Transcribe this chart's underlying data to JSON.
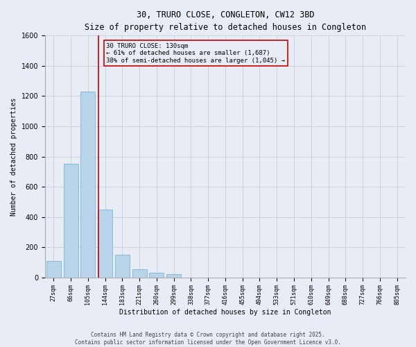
{
  "title_line1": "30, TRURO CLOSE, CONGLETON, CW12 3BD",
  "title_line2": "Size of property relative to detached houses in Congleton",
  "xlabel": "Distribution of detached houses by size in Congleton",
  "ylabel": "Number of detached properties",
  "bar_labels": [
    "27sqm",
    "66sqm",
    "105sqm",
    "144sqm",
    "183sqm",
    "221sqm",
    "260sqm",
    "299sqm",
    "338sqm",
    "377sqm",
    "416sqm",
    "455sqm",
    "494sqm",
    "533sqm",
    "571sqm",
    "610sqm",
    "649sqm",
    "688sqm",
    "727sqm",
    "766sqm",
    "805sqm"
  ],
  "bar_values": [
    110,
    750,
    1230,
    450,
    150,
    55,
    30,
    20,
    0,
    0,
    0,
    0,
    0,
    0,
    0,
    0,
    0,
    0,
    0,
    0,
    0
  ],
  "bar_color": "#b8d4e8",
  "bar_edge_color": "#6aaed6",
  "grid_color": "#c0c8d8",
  "bg_color": "#e8ecf5",
  "vline_color": "#cc0000",
  "vline_pos": 2.63,
  "annotation_text": "30 TRURO CLOSE: 130sqm\n← 61% of detached houses are smaller (1,687)\n38% of semi-detached houses are larger (1,045) →",
  "annotation_box_color": "#cc0000",
  "ylim": [
    0,
    1600
  ],
  "yticks": [
    0,
    200,
    400,
    600,
    800,
    1000,
    1200,
    1400,
    1600
  ],
  "footer_line1": "Contains HM Land Registry data © Crown copyright and database right 2025.",
  "footer_line2": "Contains public sector information licensed under the Open Government Licence v3.0."
}
